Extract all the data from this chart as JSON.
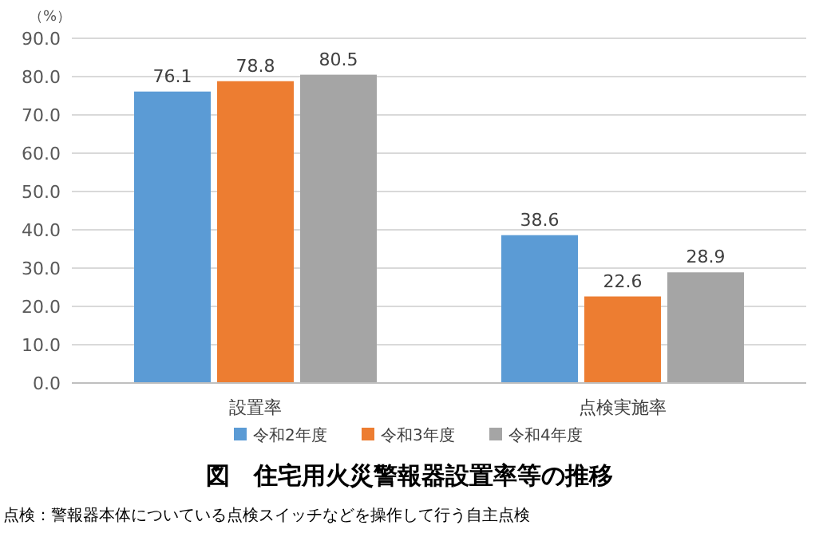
{
  "chart_data": {
    "type": "bar",
    "title": "図　住宅用火災警報器設置率等の推移",
    "ylabel": "（%）",
    "categories": [
      "設置率",
      "点検実施率"
    ],
    "series": [
      {
        "name": "令和2年度",
        "color": "#5b9bd5",
        "values": [
          76.1,
          38.6
        ]
      },
      {
        "name": "令和3年度",
        "color": "#ed7d31",
        "values": [
          78.8,
          22.6
        ]
      },
      {
        "name": "令和4年度",
        "color": "#a5a5a5",
        "values": [
          80.5,
          28.9
        ]
      }
    ],
    "ylim": [
      0,
      90
    ],
    "yticks": [
      {
        "value": 0,
        "label": "0.0"
      },
      {
        "value": 10,
        "label": "10.0"
      },
      {
        "value": 20,
        "label": "20.0"
      },
      {
        "value": 30,
        "label": "30.0"
      },
      {
        "value": 40,
        "label": "40.0"
      },
      {
        "value": 50,
        "label": "50.0"
      },
      {
        "value": 60,
        "label": "60.0"
      },
      {
        "value": 70,
        "label": "70.0"
      },
      {
        "value": 80,
        "label": "80.0"
      },
      {
        "value": 90,
        "label": "90.0"
      }
    ],
    "grid": "y",
    "legend": "bottom",
    "data_labels": true,
    "annotations": [
      "点検：警報器本体についている点検スイッチなどを操作して行う自主点検"
    ]
  }
}
